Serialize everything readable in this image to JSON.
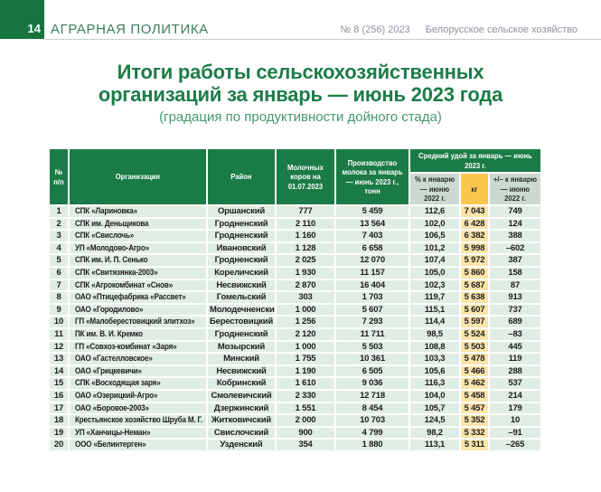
{
  "page_header": {
    "page_number": "14",
    "section": "АГРАРНАЯ ПОЛИТИКА",
    "issue_no": "№ 8 (256) 2023",
    "magazine": "Белорусское сельское хозяйство"
  },
  "title": {
    "line1": "Итоги работы сельскохозяйственных",
    "line2": "организаций за январь — июнь 2023 года",
    "subtitle": "(градация по продуктивности дойного стада)"
  },
  "table": {
    "columns": {
      "num": "№ п/п",
      "organization": "Организация",
      "district": "Район",
      "cows": "Молочных коров на 01.07.2023",
      "production": "Производство молока за январь — июнь 2023 г., тонн",
      "avg_yield_group": "Средний удой за январь — июнь 2023 г.",
      "pct": "% к январю — июню 2022 г.",
      "kg": "кг",
      "delta": "+/– к январю — июню 2022 г."
    },
    "rows": [
      [
        "1",
        "СПК «Лариновка»",
        "Оршанский",
        "777",
        "5 459",
        "112,6",
        "7 043",
        "749"
      ],
      [
        "2",
        "СПК им. Деньщикова",
        "Гродненский",
        "2 110",
        "13 564",
        "102,0",
        "6 428",
        "124"
      ],
      [
        "3",
        "СПК «Свислочь»",
        "Гродненский",
        "1 160",
        "7 403",
        "106,5",
        "6 382",
        "388"
      ],
      [
        "4",
        "УП «Молодово-Агро»",
        "Ивановский",
        "1 128",
        "6 658",
        "101,2",
        "5 998",
        "–602"
      ],
      [
        "5",
        "СПК им. И. П. Сенько",
        "Гродненский",
        "2 025",
        "12 070",
        "107,4",
        "5 972",
        "387"
      ],
      [
        "6",
        "СПК «Свитязянка-2003»",
        "Кореличский",
        "1 930",
        "11 157",
        "105,0",
        "5 860",
        "158"
      ],
      [
        "7",
        "СПК «Агрокомбинат «Снов»",
        "Несвижский",
        "2 870",
        "16 404",
        "102,3",
        "5 687",
        "87"
      ],
      [
        "8",
        "ОАО «Птицефабрика «Рассвет»",
        "Гомельский",
        "303",
        "1 703",
        "119,7",
        "5 638",
        "913"
      ],
      [
        "9",
        "ОАО «Городилово»",
        "Молодечненский",
        "1 000",
        "5 607",
        "115,1",
        "5 607",
        "737"
      ],
      [
        "10",
        "ГП «Малоберестовицкий элитхоз»",
        "Берестовицкий",
        "1 256",
        "7 293",
        "114,4",
        "5 597",
        "689"
      ],
      [
        "11",
        "ПК им. В. И. Кремко",
        "Гродненский",
        "2 120",
        "11 711",
        "98,5",
        "5 524",
        "–83"
      ],
      [
        "12",
        "ГП «Совхоз-комбинат «Заря»",
        "Мозырский",
        "1 000",
        "5 503",
        "108,8",
        "5 503",
        "445"
      ],
      [
        "13",
        "ОАО «Гастелловское»",
        "Минский",
        "1 755",
        "10 361",
        "103,3",
        "5 478",
        "119"
      ],
      [
        "14",
        "ОАО «Грицкевичи»",
        "Несвижский",
        "1 190",
        "6 505",
        "105,6",
        "5 466",
        "288"
      ],
      [
        "15",
        "СПК «Восходящая заря»",
        "Кобринский",
        "1 610",
        "9 036",
        "116,3",
        "5 462",
        "537"
      ],
      [
        "16",
        "ОАО «Озерицкий-Агро»",
        "Смолевичский",
        "2 330",
        "12 718",
        "104,0",
        "5 458",
        "214"
      ],
      [
        "17",
        "ОАО «Боровое-2003»",
        "Дзержинский",
        "1 551",
        "8 454",
        "105,7",
        "5 457",
        "179"
      ],
      [
        "18",
        "Крестьянское хозяйство Шруба М. Г.",
        "Житковичский",
        "2 000",
        "10 703",
        "124,5",
        "5 352",
        "10"
      ],
      [
        "19",
        "УП «Ханчицы-Неман»",
        "Свислочский",
        "900",
        "4 799",
        "98,2",
        "5 332",
        "–91"
      ],
      [
        "20",
        "ООО «Белинтерген»",
        "Узденский",
        "354",
        "1 880",
        "113,1",
        "5 311",
        "–265"
      ]
    ]
  },
  "colors": {
    "brand_green_dark": "#17743f",
    "table_header_green": "#1b7b46",
    "title_green": "#1c7c48",
    "subtitle_green": "#45996d",
    "subheader_sage": "#cbd9ce",
    "kg_header_yellow": "#fbc64d",
    "row_mint": "#e0ede3",
    "row_kg_yellow": "#fce4aa",
    "issue_text_gray": "#8d929b"
  }
}
